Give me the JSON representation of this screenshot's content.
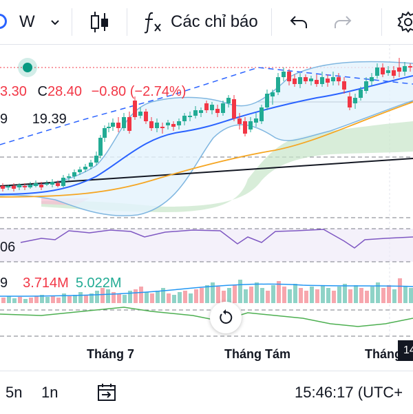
{
  "toolbar": {
    "interval": "W",
    "indicators_label": "Các chỉ báo"
  },
  "legend": {
    "ohlc_fragment": "3.30",
    "close_prefix": "C",
    "close_value": "28.40",
    "change": "−0.80",
    "change_pct": "(−2.74%)",
    "ma_prefix": "9",
    "ma_value": "19.39",
    "rsi_fragment": "06",
    "vol_prefix": "9",
    "vol_value_1": "3.714M",
    "vol_value_2": "5.022M"
  },
  "x_axis": {
    "labels": [
      "Tháng 7",
      "Tháng Tám",
      "Tháng"
    ],
    "cursor_badge": "14"
  },
  "bottom_bar": {
    "range_5n": "5n",
    "range_1n": "1n",
    "clock": "15:46:17 (UTC+"
  },
  "colors": {
    "up": "#22ab94",
    "down": "#f23645",
    "ma_blue": "#2962ff",
    "ma_orange": "#f5a623",
    "bollinger": "#7fb6e0",
    "rsi": "#7e57c2",
    "volume_ma": "#2196f3",
    "oscillator": "#4caf50"
  },
  "icons": {
    "chart_type": "candlestick-icon",
    "indicators": "function-icon",
    "undo": "undo-icon",
    "redo": "redo-icon",
    "settings": "gear-icon",
    "reset": "reset-icon",
    "date_range": "calendar-arrow-icon"
  }
}
